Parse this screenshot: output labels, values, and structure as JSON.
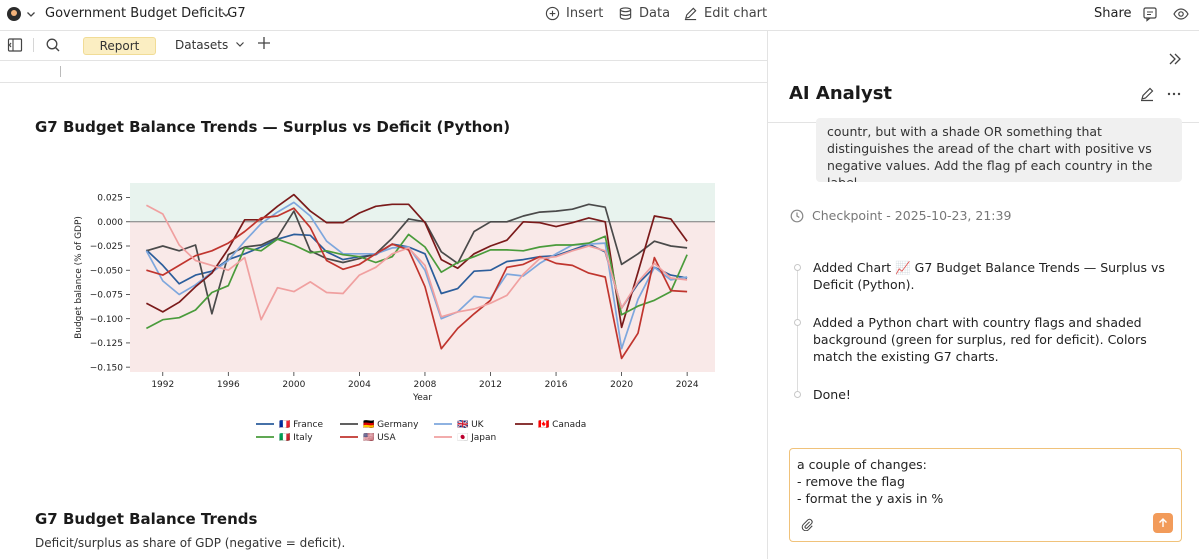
{
  "header": {
    "doc_title": "Government Budget Deficit G7",
    "insert_label": "Insert",
    "data_label": "Data",
    "edit_chart_label": "Edit chart",
    "share_label": "Share"
  },
  "toolbar": {
    "report_tab": "Report",
    "datasets_tab": "Datasets"
  },
  "report": {
    "chart_title": "G7 Budget Balance Trends — Surplus vs Deficit (Python)",
    "section2_title": "G7 Budget Balance Trends",
    "section2_subtitle": "Deficit/surplus as share of GDP (negative = deficit)."
  },
  "chart_data": {
    "type": "line",
    "title": "G7 Budget Balance Trends — Surplus vs Deficit (Python)",
    "xlabel": "Year",
    "ylabel": "Budget balance (% of GDP)",
    "xlim": [
      1990,
      2025.7
    ],
    "ylim": [
      -0.155,
      0.04
    ],
    "x_ticks": [
      1992,
      1996,
      2000,
      2004,
      2008,
      2012,
      2016,
      2020,
      2024
    ],
    "y_ticks": [
      0.025,
      0.0,
      -0.025,
      -0.05,
      -0.075,
      -0.1,
      -0.125,
      -0.15
    ],
    "y_tick_labels": [
      "0.025",
      "0.000",
      "−0.025",
      "−0.050",
      "−0.075",
      "−0.100",
      "−0.125",
      "−0.150"
    ],
    "shading": {
      "surplus_color": "#e8f3ee",
      "deficit_color": "#f9e9e8"
    },
    "x": [
      1991,
      1992,
      1993,
      1994,
      1995,
      1996,
      1997,
      1998,
      1999,
      2000,
      2001,
      2002,
      2003,
      2004,
      2005,
      2006,
      2007,
      2008,
      2009,
      2010,
      2011,
      2012,
      2013,
      2014,
      2015,
      2016,
      2017,
      2018,
      2019,
      2020,
      2021,
      2022,
      2023,
      2024
    ],
    "series": [
      {
        "name": "🇫🇷 France",
        "color": "#2b5d9b",
        "values": [
          -0.029,
          -0.045,
          -0.064,
          -0.055,
          -0.051,
          -0.039,
          -0.033,
          -0.026,
          -0.018,
          -0.013,
          -0.014,
          -0.031,
          -0.039,
          -0.036,
          -0.034,
          -0.023,
          -0.026,
          -0.033,
          -0.074,
          -0.069,
          -0.051,
          -0.05,
          -0.041,
          -0.039,
          -0.036,
          -0.035,
          -0.029,
          -0.023,
          -0.031,
          -0.089,
          -0.064,
          -0.047,
          -0.055,
          -0.058
        ]
      },
      {
        "name": "🇩🇪 Germany",
        "color": "#4a4a4a",
        "values": [
          -0.03,
          -0.025,
          -0.03,
          -0.024,
          -0.095,
          -0.034,
          -0.026,
          -0.024,
          -0.016,
          0.011,
          -0.03,
          -0.038,
          -0.042,
          -0.038,
          -0.033,
          -0.017,
          0.003,
          0.0,
          -0.031,
          -0.043,
          -0.01,
          0.0,
          0.0,
          0.006,
          0.01,
          0.011,
          0.013,
          0.018,
          0.015,
          -0.044,
          -0.033,
          -0.02,
          -0.025,
          -0.027
        ]
      },
      {
        "name": "🇬🇧 UK",
        "color": "#7ea7dd",
        "values": [
          -0.03,
          -0.061,
          -0.075,
          -0.065,
          -0.052,
          -0.04,
          -0.02,
          -0.002,
          0.01,
          0.02,
          0.006,
          -0.02,
          -0.033,
          -0.033,
          -0.033,
          -0.027,
          -0.026,
          -0.05,
          -0.1,
          -0.093,
          -0.077,
          -0.079,
          -0.054,
          -0.056,
          -0.043,
          -0.033,
          -0.024,
          -0.023,
          -0.022,
          -0.131,
          -0.08,
          -0.047,
          -0.06,
          -0.057
        ]
      },
      {
        "name": "🇨🇦 Canada",
        "color": "#7a1a1a",
        "values": [
          -0.084,
          -0.093,
          -0.083,
          -0.067,
          -0.053,
          -0.028,
          0.002,
          0.002,
          0.016,
          0.028,
          0.011,
          -0.001,
          -0.001,
          0.009,
          0.016,
          0.018,
          0.018,
          -0.001,
          -0.039,
          -0.048,
          -0.033,
          -0.025,
          -0.019,
          0.0,
          -0.001,
          -0.005,
          -0.001,
          0.004,
          0.0,
          -0.109,
          -0.052,
          0.006,
          0.003,
          -0.02
        ]
      },
      {
        "name": "🇮🇹 Italy",
        "color": "#4a9b3b",
        "values": [
          -0.11,
          -0.101,
          -0.099,
          -0.091,
          -0.073,
          -0.066,
          -0.027,
          -0.03,
          -0.018,
          -0.024,
          -0.032,
          -0.03,
          -0.034,
          -0.036,
          -0.042,
          -0.036,
          -0.013,
          -0.026,
          -0.052,
          -0.042,
          -0.036,
          -0.029,
          -0.029,
          -0.03,
          -0.026,
          -0.024,
          -0.024,
          -0.022,
          -0.015,
          -0.096,
          -0.087,
          -0.081,
          -0.072,
          -0.034
        ]
      },
      {
        "name": "🇺🇸 USA",
        "color": "#c0352e",
        "values": [
          -0.05,
          -0.055,
          -0.045,
          -0.035,
          -0.03,
          -0.022,
          -0.01,
          0.004,
          0.006,
          0.014,
          -0.006,
          -0.04,
          -0.049,
          -0.044,
          -0.033,
          -0.023,
          -0.029,
          -0.067,
          -0.131,
          -0.11,
          -0.095,
          -0.081,
          -0.047,
          -0.044,
          -0.036,
          -0.043,
          -0.045,
          -0.053,
          -0.057,
          -0.141,
          -0.115,
          -0.037,
          -0.071,
          -0.072
        ]
      },
      {
        "name": "🇯🇵 Japan",
        "color": "#f0a0a0",
        "values": [
          0.017,
          0.008,
          -0.024,
          -0.04,
          -0.045,
          -0.05,
          -0.037,
          -0.101,
          -0.068,
          -0.072,
          -0.062,
          -0.073,
          -0.074,
          -0.055,
          -0.047,
          -0.033,
          -0.027,
          -0.045,
          -0.098,
          -0.093,
          -0.09,
          -0.084,
          -0.076,
          -0.054,
          -0.038,
          -0.036,
          -0.03,
          -0.025,
          -0.03,
          -0.089,
          -0.062,
          -0.043,
          -0.058,
          -0.06
        ]
      }
    ],
    "legend_order": [
      "🇫🇷 France",
      "🇩🇪 Germany",
      "🇬🇧 UK",
      "🇨🇦 Canada",
      "🇮🇹 Italy",
      "🇺🇸 USA",
      "🇯🇵 Japan"
    ],
    "legend_position": "bottom-center"
  },
  "panel": {
    "title": "AI Analyst",
    "user_message": "countr, but with a shade OR something that distinguishes the aread of the chart with positive vs negative values. Add the flag pf each country in the label.",
    "checkpoint": "Checkpoint - 2025-10-23, 21:39",
    "events": [
      {
        "text": "Added Chart 📈 G7 Budget Balance Trends — Surplus vs Deficit (Python)."
      },
      {
        "text": "Added a Python chart with country flags and shaded background (green for surplus, red for deficit). Colors match the existing G7 charts."
      },
      {
        "text": "Done!"
      }
    ],
    "input_value": "a couple of changes:\n- remove the flag\n- format the y axis in %"
  },
  "colors": {
    "accent_orange": "#f29b5a",
    "report_tab_bg": "#fbeec2"
  }
}
